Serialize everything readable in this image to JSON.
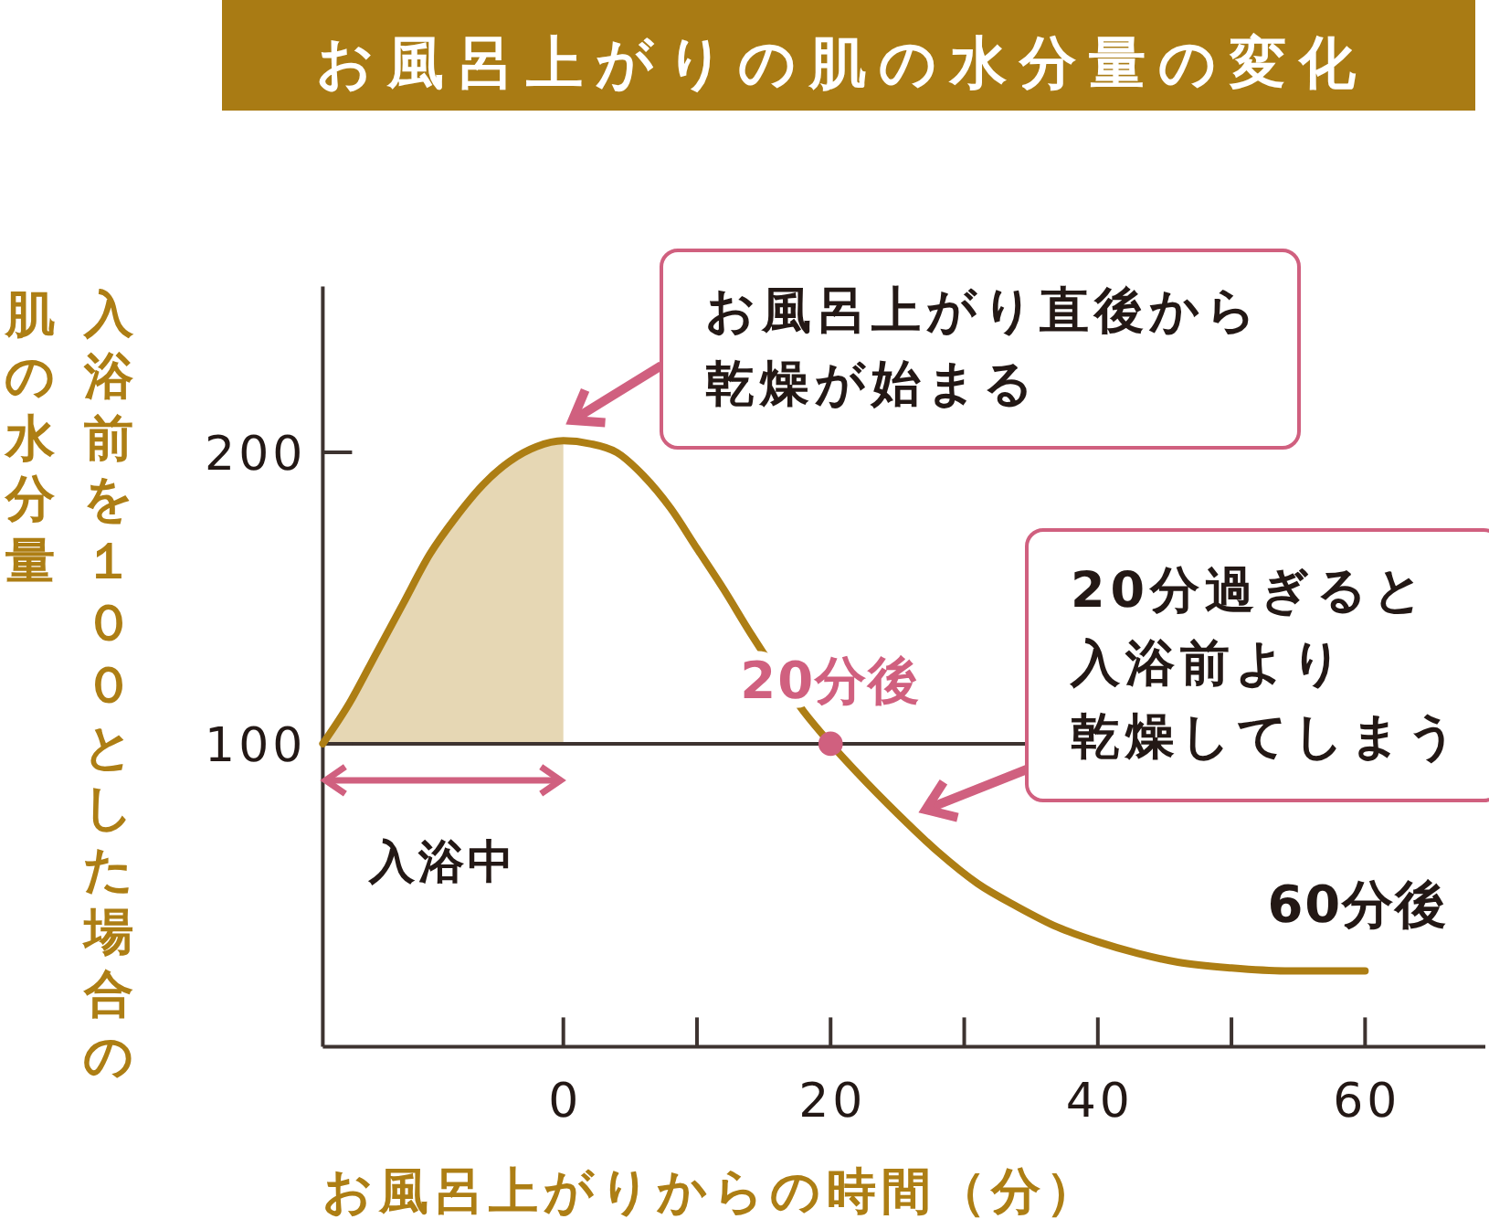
{
  "chart_data": {
    "type": "line",
    "title": "お風呂上がりの肌の水分量の変化",
    "xlabel": "お風呂上がりからの時間（分）",
    "ylabel": "入浴前を１００とした場合の肌の水分量",
    "xlim": [
      -18,
      69
    ],
    "xticks": [
      0,
      {
        "value": 10,
        "label": null
      },
      20,
      {
        "value": 30,
        "label": null
      },
      40,
      {
        "value": 50,
        "label": null
      },
      60
    ],
    "ylim": [
      -4,
      257
    ],
    "yticks": [
      100,
      200
    ],
    "series": [
      {
        "type": "area",
        "color": "#e6d7b4",
        "x": [
          -18,
          -16,
          -14,
          -12,
          -10,
          -8,
          -6,
          -4,
          -2,
          0
        ],
        "values": [
          100,
          114,
          131,
          148,
          165,
          178,
          189,
          197,
          202,
          204
        ]
      },
      {
        "type": "line",
        "color": "#ad7e14",
        "x": [
          -18,
          -16,
          -14,
          -12,
          -10,
          -8,
          -6,
          -4,
          -2,
          0,
          2,
          4,
          6,
          8,
          10,
          12,
          14,
          16,
          18,
          20,
          22,
          25,
          28,
          31,
          34,
          37,
          40,
          43,
          46,
          50,
          54,
          57,
          60
        ],
        "values": [
          100,
          114,
          131,
          148,
          165,
          178,
          189,
          197,
          202,
          204,
          203,
          200,
          192,
          181,
          167,
          153,
          138,
          124,
          111,
          100,
          90,
          76,
          63,
          52,
          44,
          37,
          32,
          28,
          25,
          23,
          22,
          22,
          22
        ]
      },
      {
        "type": "scatter",
        "name": "20分後",
        "color": "#d0607f",
        "marker": "circle",
        "x": [
          20
        ],
        "values": [
          100
        ]
      }
    ],
    "ref_lines": [
      {
        "axis": "y",
        "value": 100,
        "color": "#3d3330"
      }
    ],
    "annotations": [
      "お風呂上がり直後から乾燥が始まる",
      "20分過ぎると入浴前より乾燥してしまう",
      "入浴中",
      {
        "text": "60分後",
        "x": 60,
        "y": 22
      }
    ]
  }
}
